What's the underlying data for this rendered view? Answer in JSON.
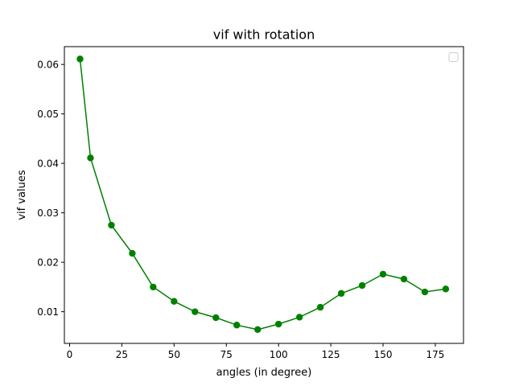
{
  "chart_data": {
    "type": "line",
    "title": "vif with rotation",
    "xlabel": "angles (in degree)",
    "ylabel": "vif values",
    "xlim": [
      -2.5,
      188.5
    ],
    "ylim": [
      0.0036,
      0.0636
    ],
    "xticks": [
      0,
      25,
      50,
      75,
      100,
      125,
      150,
      175
    ],
    "yticks": [
      0.01,
      0.02,
      0.03,
      0.04,
      0.05,
      0.06
    ],
    "grid": false,
    "legend": "top-right (empty)",
    "series": [
      {
        "color": "#008000",
        "marker": "circle",
        "x": [
          5,
          10,
          20,
          30,
          40,
          50,
          60,
          70,
          80,
          90,
          100,
          110,
          120,
          130,
          140,
          150,
          160,
          170,
          180
        ],
        "y": [
          0.0611,
          0.0411,
          0.0275,
          0.0218,
          0.015,
          0.0121,
          0.01,
          0.0088,
          0.0073,
          0.0064,
          0.0075,
          0.0089,
          0.0109,
          0.0137,
          0.0153,
          0.0176,
          0.0166,
          0.014,
          0.0146
        ]
      }
    ]
  }
}
